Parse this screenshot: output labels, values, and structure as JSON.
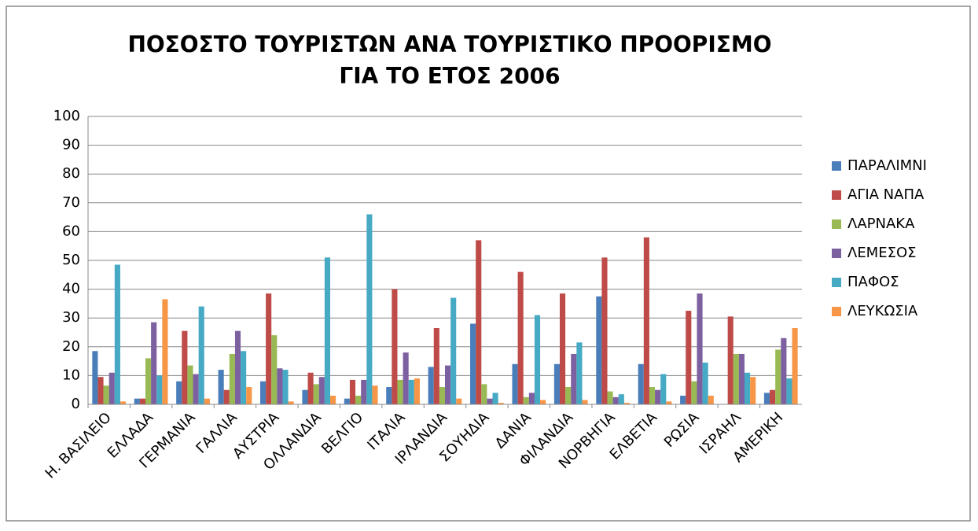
{
  "chart_data": {
    "type": "bar",
    "title": [
      "ΠΟΣΟΣΤΟ ΤΟΥΡΙΣΤΩΝ ΑΝΑ ΤΟΥΡΙΣΤΙΚΟ ΠΡΟΟΡΙΣΜΟ",
      "ΓΙΑ ΤΟ ΕΤΟΣ 2006"
    ],
    "categories": [
      "Η. ΒΑΣΙΛΕΙΟ",
      "ΕΛΛΑΔΑ",
      "ΓΕΡΜΑΝΙΑ",
      "ΓΑΛΛΙΑ",
      "ΑΥΣΤΡΙΑ",
      "ΟΛΛΑΝΔΙΑ",
      "ΒΕΛΓΙΟ",
      "ΙΤΑΛΙΑ",
      "ΙΡΛΑΝΔΙΑ",
      "ΣΟΥΗΔΙΑ",
      "ΔΑΝΙΑ",
      "ΦΙΛΑΝΔΙΑ",
      "ΝΟΡΒΗΓΙΑ",
      "ΕΛΒΕΤΙΑ",
      "ΡΩΣΙΑ",
      "ΙΣΡΑΗΛ",
      "ΑΜΕΡΙΚΗ"
    ],
    "series": [
      {
        "name": "ΠΑΡΑΛΙΜΝΙ",
        "color": "#4a7ebb",
        "values": [
          18.5,
          2,
          8,
          12,
          8,
          5,
          2,
          6,
          13,
          28,
          14,
          14,
          37.5,
          14,
          3,
          0,
          4
        ]
      },
      {
        "name": "ΑΓΙΑ ΝΑΠΑ",
        "color": "#be4b48",
        "values": [
          9.5,
          2,
          25.5,
          5,
          38.5,
          11,
          8.5,
          40,
          26.5,
          57,
          46,
          38.5,
          51,
          58,
          32.5,
          30.5,
          5
        ]
      },
      {
        "name": "ΛΑΡΝΑΚΑ",
        "color": "#98b954",
        "values": [
          6.5,
          16,
          13.5,
          17.5,
          24,
          7,
          3,
          8.5,
          6,
          7,
          2.5,
          6,
          4.5,
          6,
          8,
          17.5,
          19
        ]
      },
      {
        "name": "ΛΕΜΕΣΟΣ",
        "color": "#7d60a0",
        "values": [
          11,
          28.5,
          10.5,
          25.5,
          12.5,
          9.5,
          8.5,
          18,
          13.5,
          2,
          4,
          17.5,
          2.5,
          5,
          38.5,
          17.5,
          23
        ]
      },
      {
        "name": "ΠΑΦΟΣ",
        "color": "#46aac5",
        "values": [
          48.5,
          10,
          34,
          18.5,
          12,
          51,
          66,
          8.5,
          37,
          4,
          31,
          21.5,
          3.5,
          10.5,
          14.5,
          11,
          9
        ]
      },
      {
        "name": "ΛΕΥΚΩΣΙΑ",
        "color": "#f79646",
        "values": [
          1,
          36.5,
          2,
          6,
          1,
          3,
          6.5,
          9,
          2,
          0.5,
          1.5,
          1.5,
          0.5,
          1,
          3,
          9.5,
          26.5
        ]
      }
    ],
    "ylim": [
      0,
      100
    ],
    "yticks": [
      0,
      10,
      20,
      30,
      40,
      50,
      60,
      70,
      80,
      90,
      100
    ],
    "grid": true,
    "legend": "right"
  }
}
